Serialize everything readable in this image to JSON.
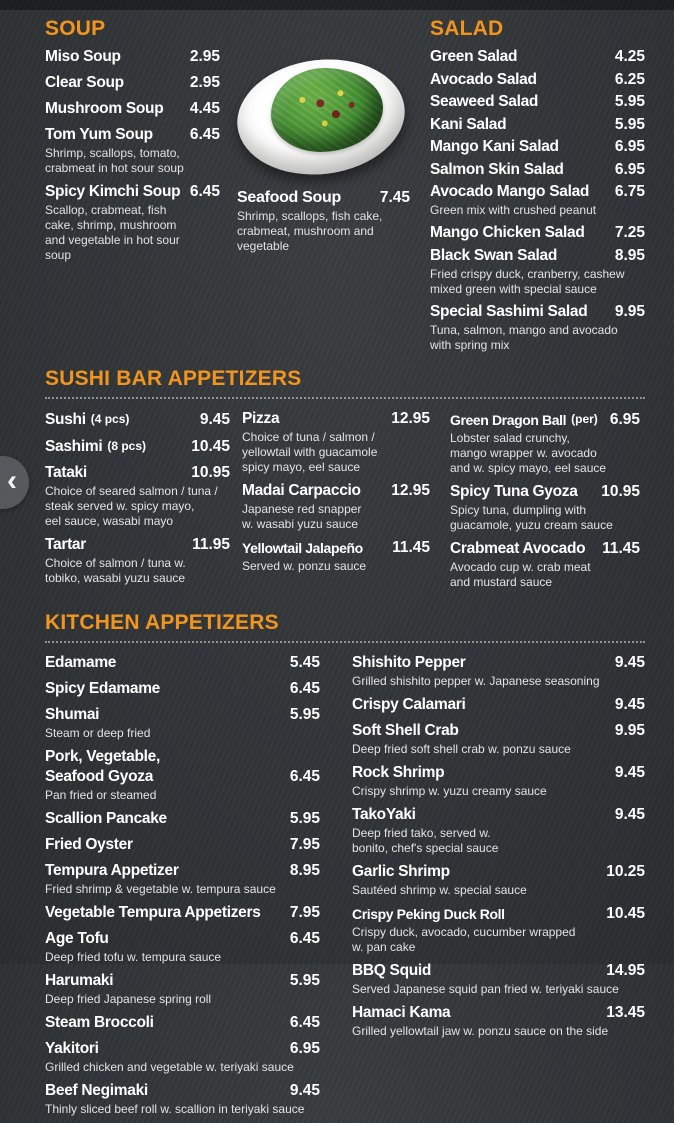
{
  "colors": {
    "accent": "#F2951F",
    "background": "#33373A",
    "text": "#FFFFFF",
    "muted": "#E3E3E3"
  },
  "nav": {
    "back_icon": "‹"
  },
  "soup": {
    "title": "SOUP",
    "items": [
      {
        "name": "Miso Soup",
        "price": "2.95"
      },
      {
        "name": "Clear Soup",
        "price": "2.95"
      },
      {
        "name": "Mushroom Soup",
        "price": "4.45"
      },
      {
        "name": "Tom Yum Soup",
        "price": "6.45",
        "desc": "Shrimp, scallops, tomato,\ncrabmeat in hot sour soup"
      },
      {
        "name": "Spicy Kimchi Soup",
        "price": "6.45",
        "desc": "Scallop, crabmeat, fish\ncake, shrimp, mushroom\nand vegetable in hot sour\nsoup"
      }
    ]
  },
  "seafood": {
    "name": "Seafood Soup",
    "price": "7.45",
    "desc": "Shrimp, scallops, fish cake,\ncrabmeat, mushroom and\nvegetable"
  },
  "salad": {
    "title": "SALAD",
    "items": [
      {
        "name": "Green Salad",
        "price": "4.25"
      },
      {
        "name": "Avocado Salad",
        "price": "6.25"
      },
      {
        "name": "Seaweed Salad",
        "price": "5.95"
      },
      {
        "name": "Kani Salad",
        "price": "5.95"
      },
      {
        "name": "Mango Kani Salad",
        "price": "6.95"
      },
      {
        "name": "Salmon Skin Salad",
        "price": "6.95"
      },
      {
        "name": "Avocado Mango Salad",
        "price": "6.75",
        "desc": "Green mix with crushed peanut"
      },
      {
        "name": "Mango Chicken Salad",
        "price": "7.25"
      },
      {
        "name": "Black Swan Salad",
        "price": "8.95",
        "desc": "Fried crispy duck, cranberry, cashew\nmixed green with special sauce"
      },
      {
        "name": "Special Sashimi Salad",
        "price": "9.95",
        "desc": "Tuna, salmon, mango and avocado\nwith spring mix"
      }
    ]
  },
  "sushi_bar": {
    "title": "SUSHI BAR APPETIZERS",
    "col1": [
      {
        "name": "Sushi",
        "qualifier": "(4 pcs)",
        "price": "9.45"
      },
      {
        "name": "Sashimi",
        "qualifier": "(8 pcs)",
        "price": "10.45"
      },
      {
        "name": "Tataki",
        "price": "10.95",
        "desc": "Choice of seared salmon / tuna /\nsteak served w. spicy mayo,\neel sauce, wasabi mayo"
      },
      {
        "name": "Tartar",
        "price": "11.95",
        "desc": "Choice of salmon / tuna w.\ntobiko, wasabi yuzu sauce"
      }
    ],
    "col2": [
      {
        "name": "Pizza",
        "price": "12.95",
        "desc": "Choice of tuna / salmon /\nyellowtail with guacamole\nspicy mayo, eel sauce"
      },
      {
        "name": "Madai Carpaccio",
        "price": "12.95",
        "desc": "Japanese red snapper\nw. wasabi yuzu sauce"
      },
      {
        "name": "Yellowtail Jalapeño",
        "price": "11.45",
        "desc": "Served w. ponzu sauce"
      }
    ],
    "col3": [
      {
        "name": "Green Dragon Ball",
        "qualifier": "(per)",
        "price": "6.95",
        "desc": "Lobster salad crunchy,\nmango wrapper w. avocado\nand w. spicy mayo, eel sauce"
      },
      {
        "name": "Spicy Tuna Gyoza",
        "price": "10.95",
        "desc": "Spicy tuna, dumpling with\nguacamole, yuzu cream sauce"
      },
      {
        "name": "Crabmeat Avocado",
        "price": "11.45",
        "desc": "Avocado cup w. crab meat\nand mustard sauce"
      }
    ]
  },
  "kitchen": {
    "title": "KITCHEN APPETIZERS",
    "col1": [
      {
        "name": "Edamame",
        "price": "5.45"
      },
      {
        "name": "Spicy Edamame",
        "price": "6.45"
      },
      {
        "name": "Shumai",
        "price": "5.95",
        "desc": "Steam or deep fried"
      },
      {
        "name": "Pork, Vegetable,\nSeafood Gyoza",
        "price": "6.45",
        "desc": "Pan fried or steamed"
      },
      {
        "name": "Scallion Pancake",
        "price": "5.95"
      },
      {
        "name": "Fried Oyster",
        "price": "7.95"
      },
      {
        "name": "Tempura Appetizer",
        "price": "8.95",
        "desc": "Fried shrimp & vegetable w. tempura sauce"
      },
      {
        "name": "Vegetable Tempura Appetizers",
        "price": "7.95"
      },
      {
        "name": "Age Tofu",
        "price": "6.45",
        "desc": "Deep fried tofu w. tempura sauce"
      },
      {
        "name": "Harumaki",
        "price": "5.95",
        "desc": "Deep fried Japanese spring roll"
      },
      {
        "name": "Steam Broccoli",
        "price": "6.45"
      },
      {
        "name": "Yakitori",
        "price": "6.95",
        "desc": "Grilled chicken and vegetable w. teriyaki sauce"
      },
      {
        "name": "Beef Negimaki",
        "price": "9.45",
        "desc": "Thinly sliced beef roll w. scallion in teriyaki sauce"
      }
    ],
    "col2": [
      {
        "name": "Shishito Pepper",
        "price": "9.45",
        "desc": "Grilled shishito pepper w. Japanese seasoning"
      },
      {
        "name": "Crispy Calamari",
        "price": "9.45"
      },
      {
        "name": "Soft Shell Crab",
        "price": "9.95",
        "desc": "Deep fried soft shell crab w. ponzu sauce"
      },
      {
        "name": "Rock Shrimp",
        "price": "9.45",
        "desc": "Crispy shrimp w. yuzu creamy sauce"
      },
      {
        "name": "TakoYaki",
        "price": "9.45",
        "desc": "Deep fried tako, served w.\nbonito, chef's special sauce"
      },
      {
        "name": "Garlic Shrimp",
        "price": "10.25",
        "desc": "Sautéed shrimp w. special sauce"
      },
      {
        "name": "Crispy Peking Duck Roll",
        "price": "10.45",
        "desc": "Crispy duck, avocado, cucumber wrapped\nw. pan cake"
      },
      {
        "name": "BBQ Squid",
        "price": "14.95",
        "desc": "Served Japanese squid pan fried w. teriyaki sauce"
      },
      {
        "name": "Hamaci Kama",
        "price": "13.45",
        "desc": "Grilled yellowtail jaw w. ponzu sauce on the side"
      }
    ]
  }
}
